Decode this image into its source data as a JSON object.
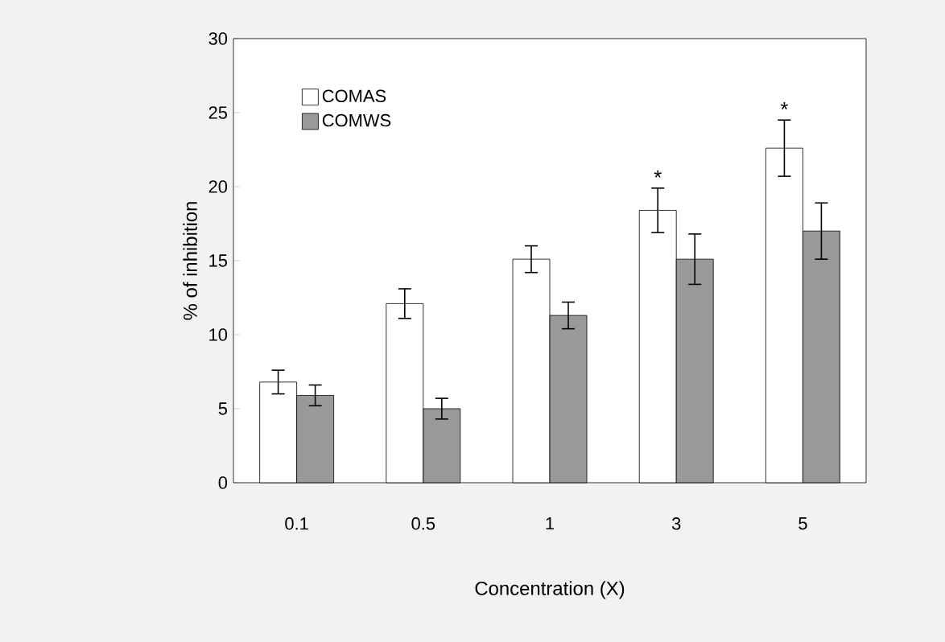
{
  "chart_data": {
    "type": "bar",
    "xlabel": "Concentration (X)",
    "ylabel": "% of inhibition",
    "categories": [
      "0.1",
      "0.5",
      "1",
      "3",
      "5"
    ],
    "series": [
      {
        "name": "COMAS",
        "color": "#ffffff",
        "values": [
          6.8,
          12.1,
          15.1,
          18.4,
          22.6
        ],
        "errors": [
          0.8,
          1.0,
          0.9,
          1.5,
          1.9
        ]
      },
      {
        "name": "COMWS",
        "color": "#999999",
        "values": [
          5.9,
          5.0,
          11.3,
          15.1,
          17.0
        ],
        "errors": [
          0.7,
          0.7,
          0.9,
          1.7,
          1.9
        ]
      }
    ],
    "ylim": [
      0,
      30
    ],
    "yticks": [
      0,
      5,
      10,
      15,
      20,
      25,
      30
    ],
    "grid": false,
    "legend": "top left",
    "annotations": [
      {
        "text": "*",
        "x": "3",
        "y": 18.4
      },
      {
        "text": "*",
        "x": "5",
        "y": 22.6
      }
    ]
  }
}
